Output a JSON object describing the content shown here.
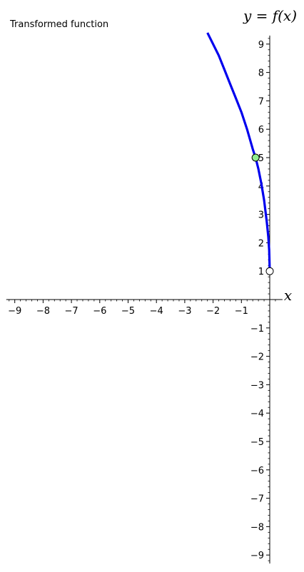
{
  "chart_data": {
    "type": "line",
    "title": "Transformed function",
    "xlabel": "x",
    "ylabel": "y = f(x)",
    "xlim": [
      -9.3,
      0.3
    ],
    "ylim": [
      -9.3,
      9.3
    ],
    "x_ticks": [
      -9,
      -8,
      -7,
      -6,
      -5,
      -4,
      -3,
      -2,
      -1
    ],
    "y_ticks": [
      -9,
      -8,
      -7,
      -6,
      -5,
      -4,
      -3,
      -2,
      -1,
      1,
      2,
      3,
      4,
      5,
      6,
      7,
      8,
      9
    ],
    "grid": false,
    "series": [
      {
        "color": "#0000ee",
        "x": [
          -2.2,
          -2.0,
          -1.8,
          -1.6,
          -1.4,
          -1.2,
          -1.0,
          -0.8,
          -0.6,
          -0.5,
          -0.4,
          -0.3,
          -0.2,
          -0.1,
          -0.05,
          -0.02,
          0
        ],
        "y": [
          9.4,
          9.0,
          8.6,
          8.1,
          7.6,
          7.1,
          6.6,
          6.0,
          5.3,
          5.0,
          4.6,
          4.1,
          3.5,
          2.7,
          2.2,
          1.75,
          1.0
        ]
      }
    ],
    "points": [
      {
        "x": -0.5,
        "y": 5,
        "style": "filled",
        "color": "#90ee90"
      },
      {
        "x": 0,
        "y": 1,
        "style": "open",
        "color": "#ffffff"
      }
    ]
  }
}
